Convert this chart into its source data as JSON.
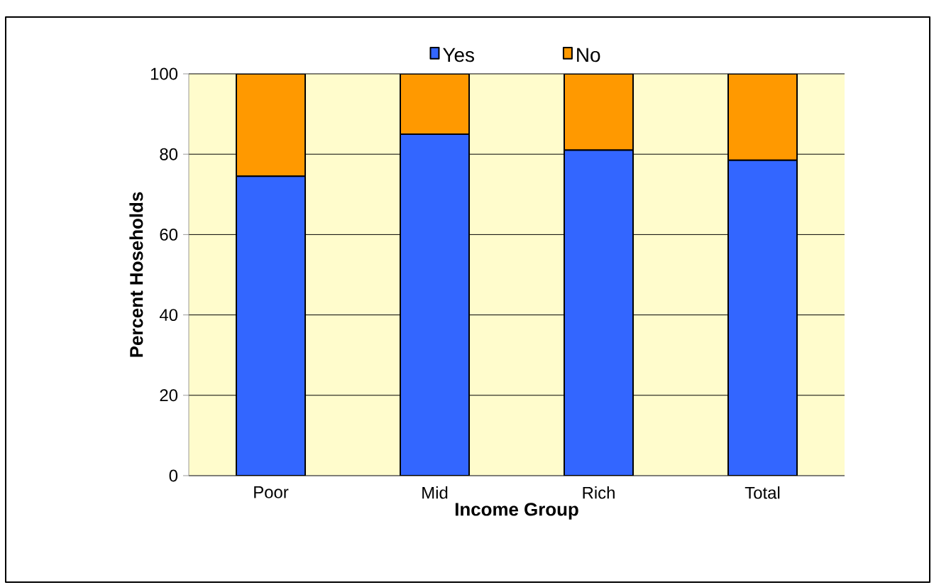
{
  "chart_data": {
    "type": "bar",
    "stacked": true,
    "xlabel": "Income Group",
    "ylabel": "Percent Hoseholds",
    "categories": [
      "Poor",
      "Mid",
      "Rich",
      "Total"
    ],
    "series": [
      {
        "name": "Yes",
        "color": "#3366ff",
        "values": [
          74.5,
          85,
          81,
          78.5
        ]
      },
      {
        "name": "No",
        "color": "#ff9900",
        "values": [
          25.5,
          15,
          19,
          21.5
        ]
      }
    ],
    "ylim": [
      0,
      100
    ],
    "yticks": [
      0,
      20,
      40,
      60,
      80,
      100
    ],
    "grid": "y",
    "legend": "top"
  }
}
